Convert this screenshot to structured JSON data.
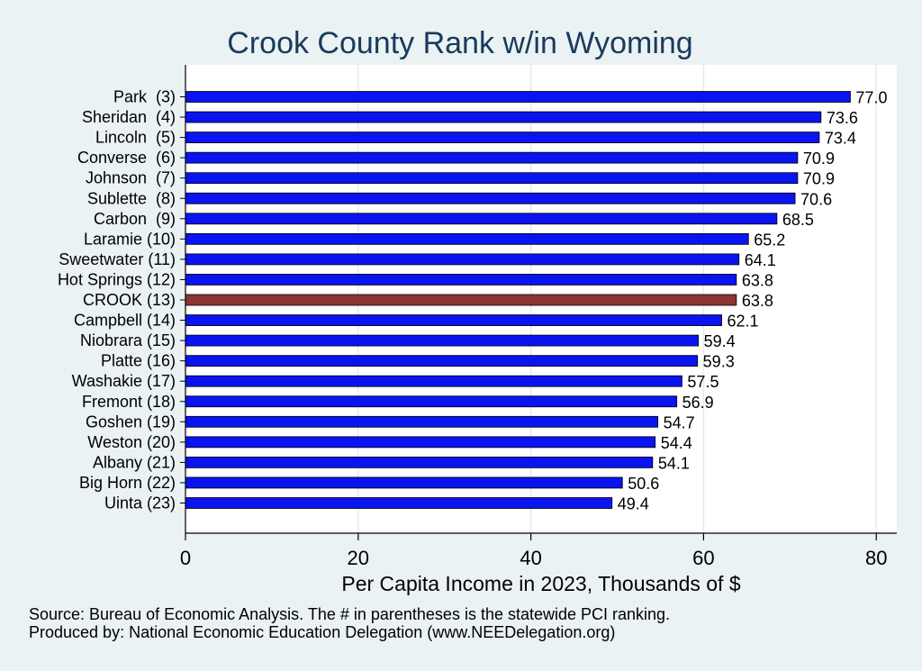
{
  "chart_data": {
    "type": "bar",
    "orientation": "horizontal",
    "title": "Crook County Rank w/in Wyoming",
    "xlabel": "Per Capita Income in 2023, Thousands of $",
    "xlim": [
      0,
      82
    ],
    "xticks": [
      0,
      20,
      40,
      60,
      80
    ],
    "grid": true,
    "categories": [
      "Park  (3)",
      "Sheridan  (4)",
      "Lincoln  (5)",
      "Converse  (6)",
      "Johnson  (7)",
      "Sublette  (8)",
      "Carbon  (9)",
      "Laramie (10)",
      "Sweetwater (11)",
      "Hot Springs (12)",
      "CROOK (13)",
      "Campbell (14)",
      "Niobrara (15)",
      "Platte (16)",
      "Washakie (17)",
      "Fremont (18)",
      "Goshen (19)",
      "Weston (20)",
      "Albany (21)",
      "Big Horn (22)",
      "Uinta (23)"
    ],
    "values": [
      77.0,
      73.6,
      73.4,
      70.9,
      70.9,
      70.6,
      68.5,
      65.2,
      64.1,
      63.8,
      63.8,
      62.1,
      59.4,
      59.3,
      57.5,
      56.9,
      54.7,
      54.4,
      54.1,
      50.6,
      49.4
    ],
    "value_labels": [
      "77.0",
      "73.6",
      "73.4",
      "70.9",
      "70.9",
      "70.6",
      "68.5",
      "65.2",
      "64.1",
      "63.8",
      "63.8",
      "62.1",
      "59.4",
      "59.3",
      "57.5",
      "56.9",
      "54.7",
      "54.4",
      "54.1",
      "50.6",
      "49.4"
    ],
    "highlight_index": 10,
    "colors": {
      "bar": "#0a14f0",
      "highlight": "#8b3535",
      "background": "#eaf2f3",
      "plot_background": "#ffffff",
      "grid": "#e2ebee",
      "title": "#1a3a5c"
    }
  },
  "notes": {
    "source": "Source: Bureau of Economic Analysis. The # in parentheses is the statewide PCI ranking.",
    "produced": "Produced by: National Economic Education Delegation (www.NEEDelegation.org)"
  }
}
